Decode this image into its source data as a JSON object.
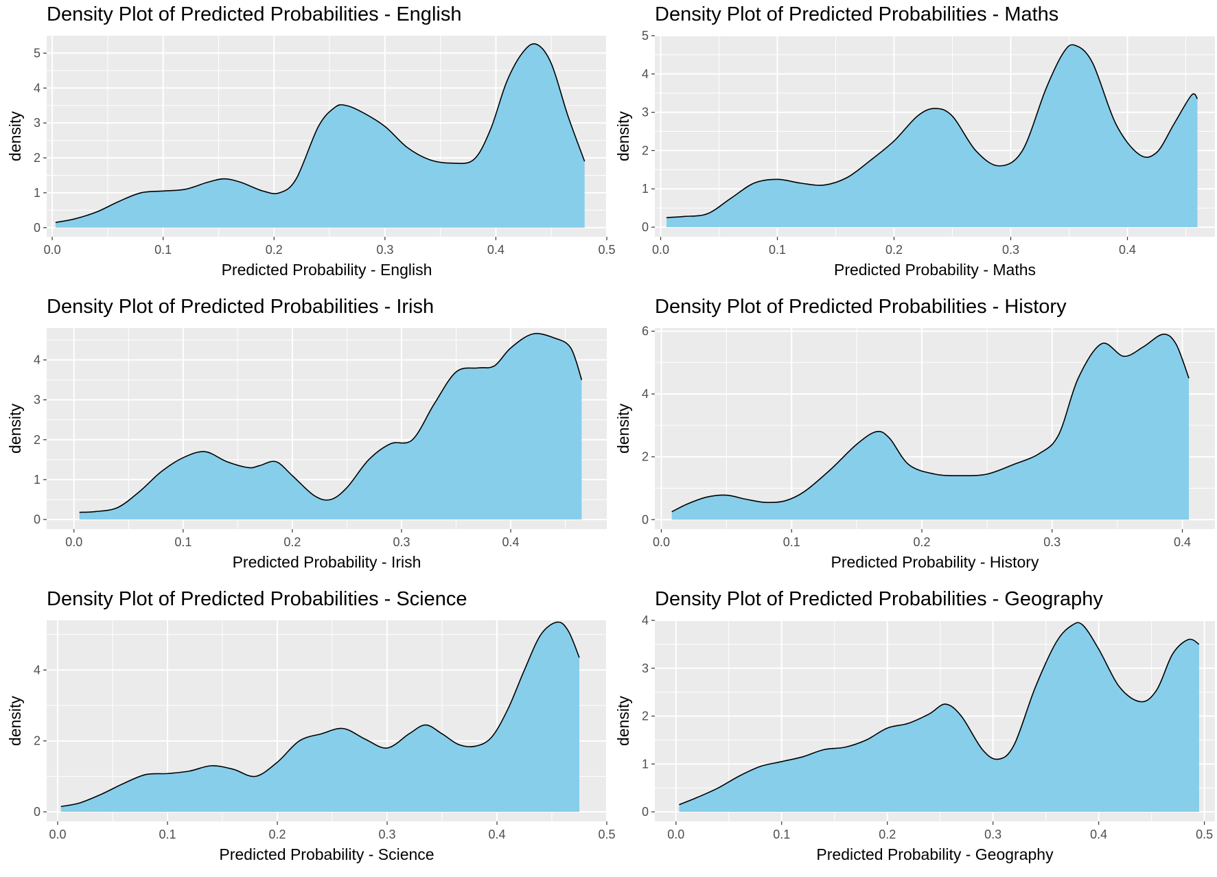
{
  "colors": {
    "panel_bg": "#EBEBEB",
    "grid": "#FFFFFF",
    "fill": "#87CEEB",
    "line": "#000000",
    "tick_text": "#4D4D4D"
  },
  "chart_data": [
    {
      "type": "area",
      "title": "Density Plot of Predicted Probabilities - English",
      "xlabel": "Predicted Probability - English",
      "ylabel": "density",
      "xlim": [
        -0.005,
        0.5
      ],
      "ylim": [
        -0.26,
        5.5
      ],
      "xticks": [
        0.0,
        0.1,
        0.2,
        0.3,
        0.4,
        0.5
      ],
      "xtick_labels": [
        "0.0",
        "0.1",
        "0.2",
        "0.3",
        "0.4",
        "0.5"
      ],
      "yticks": [
        0,
        1,
        2,
        3,
        4,
        5
      ],
      "ytick_labels": [
        "0",
        "1",
        "2",
        "3",
        "4",
        "5"
      ],
      "grid": true,
      "series": [
        {
          "x": [
            0.003,
            0.02,
            0.04,
            0.06,
            0.08,
            0.1,
            0.12,
            0.14,
            0.155,
            0.17,
            0.19,
            0.205,
            0.22,
            0.24,
            0.255,
            0.265,
            0.28,
            0.3,
            0.32,
            0.34,
            0.36,
            0.38,
            0.395,
            0.41,
            0.425,
            0.437,
            0.45,
            0.465,
            0.48
          ],
          "y": [
            0.15,
            0.25,
            0.45,
            0.75,
            1.0,
            1.05,
            1.1,
            1.3,
            1.4,
            1.3,
            1.05,
            1.0,
            1.4,
            2.9,
            3.45,
            3.5,
            3.3,
            2.9,
            2.3,
            1.95,
            1.85,
            1.95,
            2.8,
            4.2,
            5.05,
            5.25,
            4.7,
            3.2,
            1.9
          ]
        }
      ]
    },
    {
      "type": "area",
      "title": "Density Plot of Predicted Probabilities - Maths",
      "xlabel": "Predicted Probability - Maths",
      "ylabel": "density",
      "xlim": [
        -0.005,
        0.475
      ],
      "ylim": [
        -0.25,
        5.0
      ],
      "xticks": [
        0.0,
        0.1,
        0.2,
        0.3,
        0.4
      ],
      "xtick_labels": [
        "0.0",
        "0.1",
        "0.2",
        "0.3",
        "0.4"
      ],
      "yticks": [
        0,
        1,
        2,
        3,
        4,
        5
      ],
      "ytick_labels": [
        "0",
        "1",
        "2",
        "3",
        "4",
        "5"
      ],
      "grid": true,
      "series": [
        {
          "x": [
            0.005,
            0.02,
            0.04,
            0.06,
            0.08,
            0.1,
            0.12,
            0.14,
            0.16,
            0.18,
            0.2,
            0.22,
            0.235,
            0.25,
            0.27,
            0.29,
            0.31,
            0.33,
            0.345,
            0.355,
            0.37,
            0.39,
            0.41,
            0.425,
            0.44,
            0.455,
            0.46
          ],
          "y": [
            0.25,
            0.28,
            0.35,
            0.75,
            1.15,
            1.25,
            1.15,
            1.1,
            1.3,
            1.75,
            2.25,
            2.9,
            3.1,
            2.9,
            2.0,
            1.6,
            2.0,
            3.6,
            4.55,
            4.75,
            4.3,
            2.7,
            1.9,
            1.95,
            2.7,
            3.45,
            3.35
          ]
        }
      ]
    },
    {
      "type": "area",
      "title": "Density Plot of Predicted Probabilities - Irish",
      "xlabel": "Predicted Probability - Irish",
      "ylabel": "density",
      "xlim": [
        -0.025,
        0.488
      ],
      "ylim": [
        -0.24,
        4.8
      ],
      "xticks": [
        0.0,
        0.1,
        0.2,
        0.3,
        0.4
      ],
      "xtick_labels": [
        "0.0",
        "0.1",
        "0.2",
        "0.3",
        "0.4"
      ],
      "yticks": [
        0,
        1,
        2,
        3,
        4
      ],
      "ytick_labels": [
        "0",
        "1",
        "2",
        "3",
        "4"
      ],
      "grid": true,
      "series": [
        {
          "x": [
            0.005,
            0.02,
            0.04,
            0.06,
            0.08,
            0.1,
            0.12,
            0.14,
            0.16,
            0.17,
            0.185,
            0.2,
            0.22,
            0.235,
            0.25,
            0.27,
            0.29,
            0.31,
            0.33,
            0.35,
            0.37,
            0.385,
            0.4,
            0.42,
            0.44,
            0.455,
            0.465
          ],
          "y": [
            0.18,
            0.2,
            0.3,
            0.7,
            1.2,
            1.55,
            1.7,
            1.45,
            1.3,
            1.35,
            1.45,
            1.1,
            0.6,
            0.5,
            0.8,
            1.5,
            1.9,
            2.0,
            2.9,
            3.7,
            3.8,
            3.85,
            4.3,
            4.65,
            4.55,
            4.3,
            3.5
          ]
        }
      ]
    },
    {
      "type": "area",
      "title": "Density Plot of Predicted Probabilities - History",
      "xlabel": "Predicted Probability - History",
      "ylabel": "density",
      "xlim": [
        -0.005,
        0.425
      ],
      "ylim": [
        -0.3,
        6.1
      ],
      "xticks": [
        0.0,
        0.1,
        0.2,
        0.3,
        0.4
      ],
      "xtick_labels": [
        "0.0",
        "0.1",
        "0.2",
        "0.3",
        "0.4"
      ],
      "yticks": [
        0,
        2,
        4,
        6
      ],
      "ytick_labels": [
        "0",
        "2",
        "4",
        "6"
      ],
      "grid": true,
      "series": [
        {
          "x": [
            0.008,
            0.02,
            0.035,
            0.05,
            0.065,
            0.08,
            0.095,
            0.11,
            0.13,
            0.15,
            0.165,
            0.175,
            0.19,
            0.21,
            0.23,
            0.25,
            0.27,
            0.29,
            0.305,
            0.32,
            0.338,
            0.355,
            0.37,
            0.385,
            0.395,
            0.405
          ],
          "y": [
            0.25,
            0.5,
            0.72,
            0.78,
            0.65,
            0.55,
            0.6,
            0.9,
            1.6,
            2.4,
            2.8,
            2.6,
            1.75,
            1.45,
            1.4,
            1.45,
            1.75,
            2.1,
            2.7,
            4.5,
            5.6,
            5.2,
            5.5,
            5.9,
            5.6,
            4.5
          ]
        }
      ]
    },
    {
      "type": "area",
      "title": "Density Plot of Predicted Probabilities - Science",
      "xlabel": "Predicted Probability - Science",
      "ylabel": "density",
      "xlim": [
        -0.01,
        0.5
      ],
      "ylim": [
        -0.27,
        5.4
      ],
      "xticks": [
        0.0,
        0.1,
        0.2,
        0.3,
        0.4,
        0.5
      ],
      "xtick_labels": [
        "0.0",
        "0.1",
        "0.2",
        "0.3",
        "0.4",
        "0.5"
      ],
      "yticks": [
        0,
        2,
        4
      ],
      "ytick_labels": [
        "0",
        "2",
        "4"
      ],
      "grid": true,
      "series": [
        {
          "x": [
            0.003,
            0.02,
            0.04,
            0.06,
            0.08,
            0.1,
            0.12,
            0.14,
            0.16,
            0.18,
            0.2,
            0.22,
            0.24,
            0.26,
            0.28,
            0.3,
            0.32,
            0.335,
            0.35,
            0.365,
            0.38,
            0.395,
            0.41,
            0.425,
            0.44,
            0.455,
            0.465,
            0.475
          ],
          "y": [
            0.15,
            0.25,
            0.5,
            0.8,
            1.05,
            1.08,
            1.15,
            1.3,
            1.2,
            1.0,
            1.4,
            2.0,
            2.2,
            2.35,
            2.05,
            1.8,
            2.2,
            2.45,
            2.2,
            1.9,
            1.85,
            2.1,
            2.9,
            4.0,
            5.0,
            5.35,
            5.1,
            4.35
          ]
        }
      ]
    },
    {
      "type": "area",
      "title": "Density Plot of Predicted Probabilities - Geography",
      "xlabel": "Predicted Probability - Geography",
      "ylabel": "density",
      "xlim": [
        -0.02,
        0.51
      ],
      "ylim": [
        -0.2,
        4.0
      ],
      "xticks": [
        0.0,
        0.1,
        0.2,
        0.3,
        0.4,
        0.5
      ],
      "xtick_labels": [
        "0.0",
        "0.1",
        "0.2",
        "0.3",
        "0.4",
        "0.5"
      ],
      "yticks": [
        0,
        1,
        2,
        3,
        4
      ],
      "ytick_labels": [
        "0",
        "1",
        "2",
        "3",
        "4"
      ],
      "grid": true,
      "series": [
        {
          "x": [
            0.003,
            0.02,
            0.04,
            0.06,
            0.08,
            0.1,
            0.12,
            0.14,
            0.16,
            0.18,
            0.2,
            0.22,
            0.24,
            0.255,
            0.27,
            0.29,
            0.305,
            0.32,
            0.34,
            0.36,
            0.375,
            0.385,
            0.4,
            0.42,
            0.44,
            0.455,
            0.47,
            0.485,
            0.495
          ],
          "y": [
            0.15,
            0.3,
            0.5,
            0.75,
            0.95,
            1.05,
            1.15,
            1.3,
            1.35,
            1.5,
            1.75,
            1.85,
            2.05,
            2.25,
            2.0,
            1.3,
            1.1,
            1.4,
            2.6,
            3.55,
            3.9,
            3.9,
            3.4,
            2.6,
            2.3,
            2.55,
            3.3,
            3.6,
            3.5
          ]
        }
      ]
    }
  ]
}
